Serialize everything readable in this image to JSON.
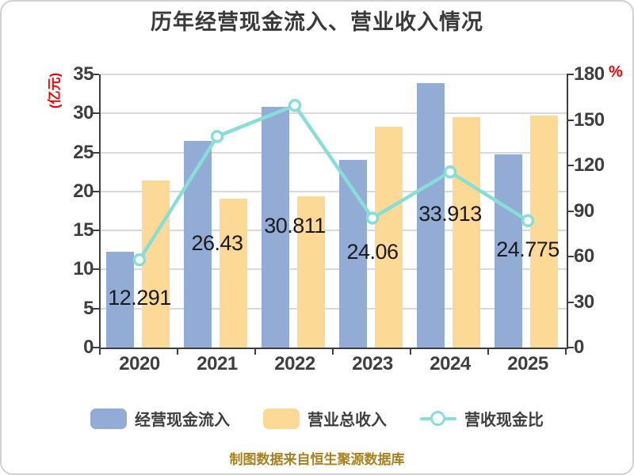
{
  "title": "历年经营现金流入、营业收入情况",
  "footer": "制图数据来自恒生聚源数据库",
  "axes": {
    "left": {
      "unit": "(亿元)",
      "ticks": [
        0,
        5,
        10,
        15,
        20,
        25,
        30,
        35
      ],
      "max": 35
    },
    "right": {
      "unit": "%",
      "ticks": [
        0,
        30,
        60,
        90,
        120,
        150,
        180
      ],
      "max": 180
    }
  },
  "chart_data": {
    "type": "bar+line",
    "title": "历年经营现金流入、营业收入情况",
    "categories": [
      "2020",
      "2021",
      "2022",
      "2023",
      "2024",
      "2025"
    ],
    "series": [
      {
        "key": "cash-inflow",
        "name": "经营现金流入",
        "type": "bar",
        "axis": "left",
        "color": "#92acd6",
        "values": [
          12.291,
          26.43,
          30.811,
          24.06,
          33.913,
          24.775
        ],
        "labels": [
          "12.291",
          "26.43",
          "30.811",
          "24.06",
          "33.913",
          "24.775"
        ]
      },
      {
        "key": "total-revenue",
        "name": "营业总收入",
        "type": "bar",
        "axis": "left",
        "color": "#fdd996",
        "values": [
          21.4,
          19.1,
          19.35,
          28.35,
          29.5,
          29.75
        ]
      },
      {
        "key": "cash-revenue-ratio",
        "name": "营收现金比",
        "type": "line",
        "axis": "right",
        "color": "#87ded6",
        "marker_fill": "#ffffff",
        "values": [
          57.8,
          139.1,
          159.6,
          85.3,
          115.7,
          83.6
        ]
      }
    ],
    "ylim_left": [
      0,
      35
    ],
    "ylim_right": [
      0,
      180
    ],
    "grid": true,
    "legend_position": "bottom"
  },
  "legend": {
    "items": [
      {
        "key": "cash-inflow",
        "label": "经营现金流入",
        "marker": "rect",
        "color": "#92acd6"
      },
      {
        "key": "total-revenue",
        "label": "营业总收入",
        "marker": "rect",
        "color": "#fdd996"
      },
      {
        "key": "cash-revenue-ratio",
        "label": "营收现金比",
        "marker": "line-circle",
        "color": "#87ded6"
      }
    ]
  },
  "colors": {
    "bar_blue": "#92acd6",
    "bar_orange": "#fdd996",
    "line_teal": "#87ded6",
    "grid": "#d9d9d9",
    "axis": "#3f3f3f",
    "tick_text": "#3f3f3f",
    "value_label_text": "#1a1a1a",
    "title_text": "#3a3a3a",
    "unit_red": "#ff0000",
    "footer_gold": "#a9801c"
  }
}
